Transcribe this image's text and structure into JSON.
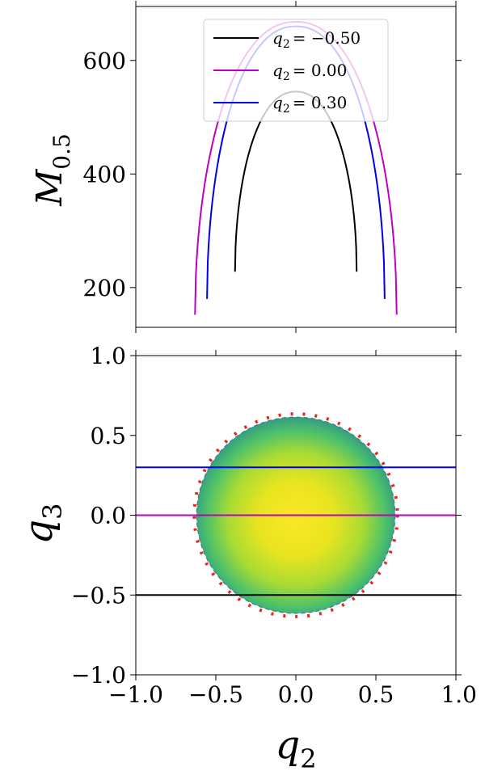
{
  "chart_data": [
    {
      "type": "line",
      "panel": "top",
      "ylabel": "M",
      "ylabel_sub": "0.5",
      "xlim": [
        -1.0,
        1.0
      ],
      "ylim": [
        130,
        695
      ],
      "yticks": [
        {
          "value": 200,
          "label": "200"
        },
        {
          "value": 400,
          "label": "400"
        },
        {
          "value": 600,
          "label": "600"
        }
      ],
      "legend": {
        "placement": "top-center"
      },
      "series": [
        {
          "name": "q2 = −0.50",
          "label_var": "q",
          "label_sub": "2",
          "label_val": "= −0.50",
          "color": "#000000",
          "half_width": 0.38,
          "peak": 545,
          "min": 228
        },
        {
          "name": "q2 = 0.00",
          "label_var": "q",
          "label_sub": "2",
          "label_val": "= 0.00",
          "color": "#bf00bf",
          "half_width": 0.63,
          "peak": 668,
          "min": 152
        },
        {
          "name": "q2 = 0.30",
          "label_var": "q",
          "label_sub": "2",
          "label_val": "= 0.30",
          "color": "#0000ee",
          "half_width": 0.555,
          "peak": 660,
          "min": 180
        }
      ]
    },
    {
      "type": "heatmap",
      "panel": "bottom",
      "xlabel": "q",
      "xlabel_sub": "2",
      "ylabel": "q",
      "ylabel_sub": "3",
      "xlim": [
        -1.0,
        1.0
      ],
      "ylim": [
        -1.0,
        1.0
      ],
      "xticks": [
        {
          "value": -1.0,
          "label": "−1.0"
        },
        {
          "value": -0.5,
          "label": "−0.5"
        },
        {
          "value": 0.0,
          "label": "0.0"
        },
        {
          "value": 0.5,
          "label": "0.5"
        },
        {
          "value": 1.0,
          "label": "1.0"
        }
      ],
      "yticks": [
        {
          "value": -1.0,
          "label": "−1.0"
        },
        {
          "value": -0.5,
          "label": "−0.5"
        },
        {
          "value": 0.0,
          "label": "0.0"
        },
        {
          "value": 0.5,
          "label": "0.5"
        },
        {
          "value": 1.0,
          "label": "1.0"
        }
      ],
      "region": {
        "shape": "disk",
        "radius_x": 0.62,
        "radius_y": 0.615,
        "center": [
          0,
          0
        ],
        "colormap": [
          "#fde725",
          "#cde11d",
          "#7ad151",
          "#2a9d8e",
          "#2c728e"
        ]
      },
      "boundary": {
        "radius": 0.635,
        "color": "#e8261c",
        "style": "dotted"
      },
      "hlines": [
        {
          "y": 0.3,
          "color": "#0000ee"
        },
        {
          "y": 0.0,
          "color": "#bf00bf"
        },
        {
          "y": -0.5,
          "color": "#000000"
        }
      ]
    }
  ]
}
